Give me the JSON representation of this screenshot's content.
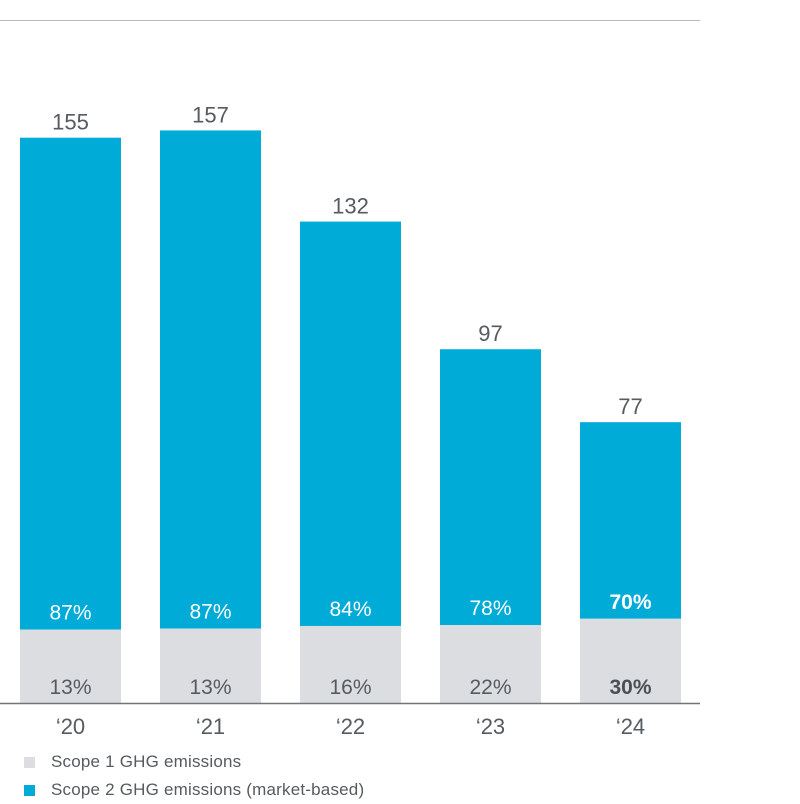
{
  "chart_data": {
    "type": "bar",
    "stacked": true,
    "categories": [
      "‘20",
      "‘21",
      "‘22",
      "‘23",
      "‘24"
    ],
    "totals": [
      "155",
      "157",
      "132",
      "97",
      "77"
    ],
    "total_values": [
      155,
      157,
      132,
      97,
      77
    ],
    "series": [
      {
        "name": "Scope 1 GHG emissions",
        "color": "#dcdde0",
        "share_pct": [
          13,
          13,
          16,
          22,
          30
        ],
        "labels": [
          "13%",
          "13%",
          "16%",
          "22%",
          "30%"
        ]
      },
      {
        "name": "Scope 2 GHG emissions (market-based)",
        "color": "#00acd7",
        "share_pct": [
          87,
          87,
          84,
          78,
          70
        ],
        "labels": [
          "87%",
          "87%",
          "84%",
          "78%",
          "70%"
        ]
      }
    ],
    "highlight_index": 4,
    "ylim": [
      0,
      170
    ],
    "grid": false,
    "legend_position": "bottom-left"
  }
}
